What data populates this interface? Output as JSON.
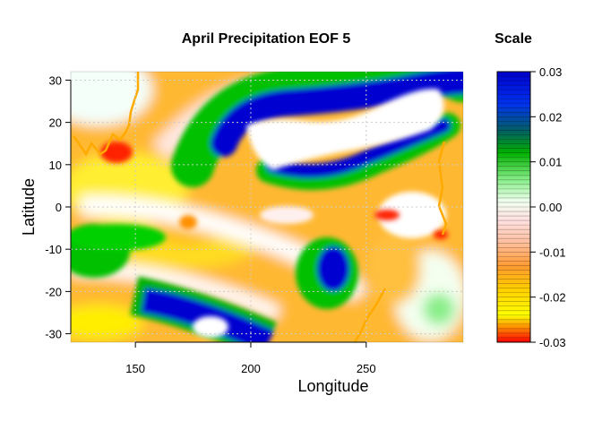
{
  "chart_data": {
    "type": "heatmap",
    "title": "April Precipitation EOF 5",
    "xlabel": "Longitude",
    "ylabel": "Latitude",
    "xlim": [
      122,
      292
    ],
    "ylim": [
      -32,
      32
    ],
    "x_ticks": [
      150,
      200,
      250
    ],
    "y_ticks": [
      30,
      20,
      10,
      0,
      -10,
      -20,
      -30
    ],
    "grid": true,
    "colorbar": {
      "title": "Scale",
      "range": [
        -0.03,
        0.03
      ],
      "ticks": [
        0.03,
        0.02,
        0.01,
        0.0,
        -0.01,
        -0.02,
        -0.03
      ],
      "tick_labels": [
        "0.03",
        "0.02",
        "0.01",
        "0.00",
        "-0.01",
        "-0.02",
        "-0.03"
      ],
      "palette": [
        "#0000cc",
        "#0044ee",
        "#00a000",
        "#00dd00",
        "#ffffff",
        "#ffd8cc",
        "#ffa500",
        "#ffff00",
        "#ff0000"
      ]
    },
    "approximate_features": [
      {
        "lon": 242,
        "lat": 26,
        "value": 0.0
      },
      {
        "lon": 225,
        "lat": 17,
        "value": 0.028
      },
      {
        "lon": 165,
        "lat": 16,
        "value": -0.018
      },
      {
        "lon": 142,
        "lat": 12,
        "value": -0.03
      },
      {
        "lon": 173,
        "lat": -4,
        "value": -0.025
      },
      {
        "lon": 130,
        "lat": -11,
        "value": 0.012
      },
      {
        "lon": 236,
        "lat": -15,
        "value": 0.027
      },
      {
        "lon": 190,
        "lat": -25,
        "value": 0.028
      },
      {
        "lon": 182,
        "lat": -28,
        "value": 0.0
      },
      {
        "lon": 267,
        "lat": 0,
        "value": 0.0
      },
      {
        "lon": 260,
        "lat": -1,
        "value": -0.03
      },
      {
        "lon": 285,
        "lat": -22,
        "value": 0.008
      },
      {
        "lon": 230,
        "lat": 3,
        "value": 0.0
      }
    ]
  }
}
